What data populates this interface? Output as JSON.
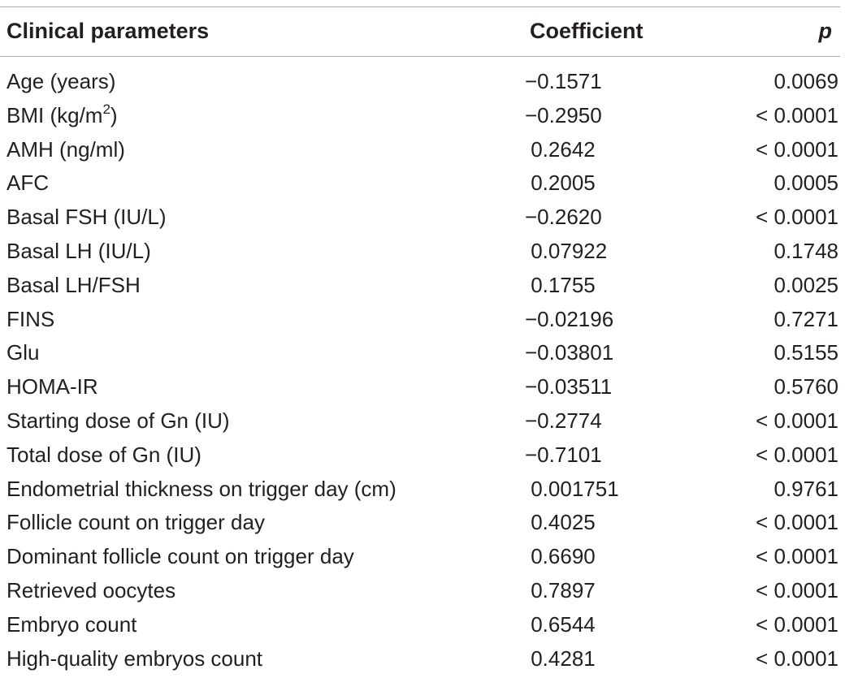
{
  "table": {
    "headers": {
      "parameter": "Clinical parameters",
      "coefficient": "Coefficient",
      "p": "p"
    },
    "rows": [
      {
        "parameter": "Age (years)",
        "coefficient": "−0.1571",
        "p": "0.0069"
      },
      {
        "parameter_pre": "BMI (kg/m",
        "parameter_sup": "2",
        "parameter_post": ")",
        "coefficient": "−0.2950",
        "p": "< 0.0001"
      },
      {
        "parameter": "AMH (ng/ml)",
        "coefficient": " 0.2642",
        "p": "< 0.0001"
      },
      {
        "parameter": "AFC",
        "coefficient": " 0.2005",
        "p": "0.0005"
      },
      {
        "parameter": "Basal FSH (IU/L)",
        "coefficient": "−0.2620",
        "p": "< 0.0001"
      },
      {
        "parameter": "Basal LH (IU/L)",
        "coefficient": " 0.07922",
        "p": "0.1748"
      },
      {
        "parameter": "Basal LH/FSH",
        "coefficient": " 0.1755",
        "p": "0.0025"
      },
      {
        "parameter": "FINS",
        "coefficient": "−0.02196",
        "p": "0.7271"
      },
      {
        "parameter": "Glu",
        "coefficient": "−0.03801",
        "p": "0.5155"
      },
      {
        "parameter": "HOMA-IR",
        "coefficient": "−0.03511",
        "p": "0.5760"
      },
      {
        "parameter": "Starting dose of Gn (IU)",
        "coefficient": "−0.2774",
        "p": "< 0.0001"
      },
      {
        "parameter": "Total dose of Gn (IU)",
        "coefficient": "−0.7101",
        "p": "< 0.0001"
      },
      {
        "parameter": "Endometrial thickness on trigger day (cm)",
        "coefficient": " 0.001751",
        "p": "0.9761"
      },
      {
        "parameter": "Follicle count on trigger day",
        "coefficient": " 0.4025",
        "p": "< 0.0001"
      },
      {
        "parameter": "Dominant follicle count on trigger day",
        "coefficient": " 0.6690",
        "p": "< 0.0001"
      },
      {
        "parameter": "Retrieved oocytes",
        "coefficient": " 0.7897",
        "p": "< 0.0001"
      },
      {
        "parameter": "Embryo count",
        "coefficient": " 0.6544",
        "p": "< 0.0001"
      },
      {
        "parameter": "High-quality embryos count",
        "coefficient": " 0.4281",
        "p": "< 0.0001"
      }
    ]
  },
  "colors": {
    "text": "#231f20",
    "rule": "#a7a9ac"
  }
}
